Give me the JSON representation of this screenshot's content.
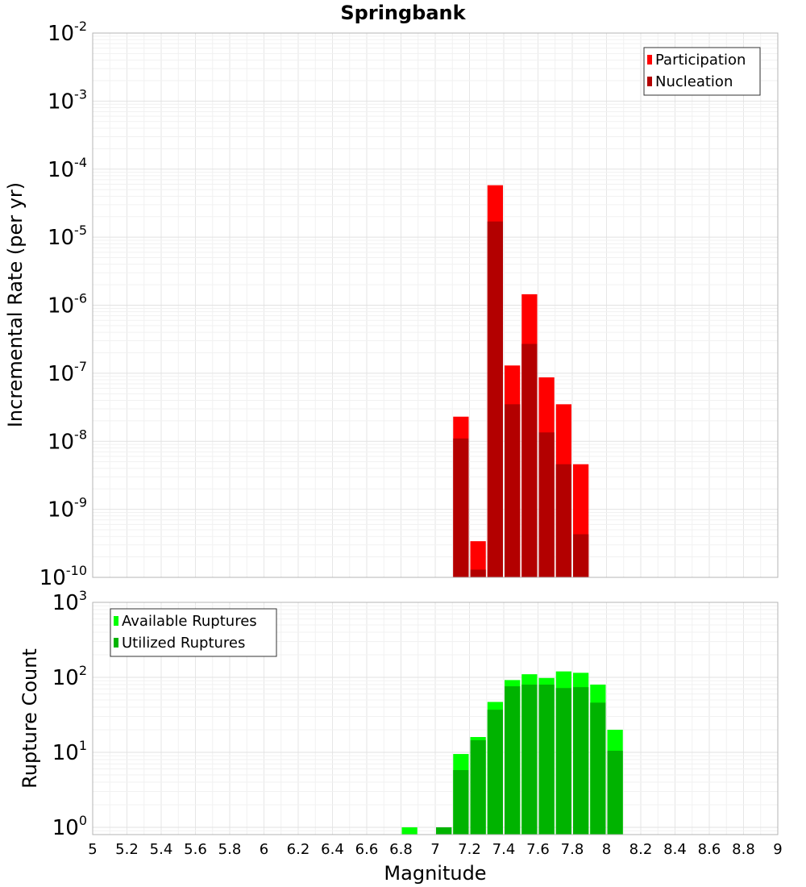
{
  "chart_data": {
    "title": "Springbank",
    "xlabel": "Magnitude",
    "x_ticks": [
      "5",
      "5.2",
      "5.4",
      "5.6",
      "5.8",
      "6",
      "6.2",
      "6.4",
      "6.6",
      "6.8",
      "7",
      "7.2",
      "7.4",
      "7.6",
      "7.8",
      "8",
      "8.2",
      "8.4",
      "8.6",
      "8.8",
      "9"
    ],
    "xlim": [
      5,
      9
    ],
    "bin_width": 0.1,
    "plots": [
      {
        "type": "bar",
        "ylabel": "Incremental Rate (per yr)",
        "yscale": "log",
        "ylim": [
          1e-10,
          0.01
        ],
        "y_ticks": [
          {
            "base": "10",
            "exp": "-10"
          },
          {
            "base": "10",
            "exp": "-9"
          },
          {
            "base": "10",
            "exp": "-8"
          },
          {
            "base": "10",
            "exp": "-7"
          },
          {
            "base": "10",
            "exp": "-6"
          },
          {
            "base": "10",
            "exp": "-5"
          },
          {
            "base": "10",
            "exp": "-4"
          },
          {
            "base": "10",
            "exp": "-3"
          },
          {
            "base": "10",
            "exp": "-2"
          }
        ],
        "legend_position": "top-right",
        "series": [
          {
            "name": "Participation",
            "color": "#ff0000",
            "x": [
              7.15,
              7.25,
              7.35,
              7.45,
              7.55,
              7.65,
              7.75,
              7.85
            ],
            "values": [
              2.3e-08,
              3.4e-10,
              5.8e-05,
              1.3e-07,
              1.45e-06,
              8.7e-08,
              3.5e-08,
              4.6e-09
            ]
          },
          {
            "name": "Nucleation",
            "color": "#b30000",
            "x": [
              7.15,
              7.25,
              7.35,
              7.45,
              7.55,
              7.65,
              7.75,
              7.85
            ],
            "values": [
              1.1e-08,
              1.3e-10,
              1.7e-05,
              3.5e-08,
              2.7e-07,
              1.35e-08,
              4.6e-09,
              4.3e-10
            ]
          }
        ]
      },
      {
        "type": "bar",
        "ylabel": "Rupture Count",
        "yscale": "log",
        "ylim": [
          0.8,
          1000
        ],
        "y_ticks": [
          {
            "base": "10",
            "exp": "0"
          },
          {
            "base": "10",
            "exp": "1"
          },
          {
            "base": "10",
            "exp": "2"
          },
          {
            "base": "10",
            "exp": "3"
          }
        ],
        "legend_position": "top-left",
        "series": [
          {
            "name": "Available Ruptures",
            "color": "#00ff00",
            "x": [
              6.85,
              7.05,
              7.15,
              7.25,
              7.35,
              7.45,
              7.55,
              7.65,
              7.75,
              7.85,
              7.95,
              8.05
            ],
            "values": [
              1,
              1,
              9.5,
              16,
              47,
              92,
              110,
              98,
              120,
              115,
              80,
              20
            ]
          },
          {
            "name": "Utilized Ruptures",
            "color": "#00b300",
            "x": [
              6.85,
              7.05,
              7.15,
              7.25,
              7.35,
              7.45,
              7.55,
              7.65,
              7.75,
              7.85,
              7.95,
              8.05
            ],
            "values": [
              0,
              1,
              5.8,
              14.5,
              37,
              76,
              80,
              80,
              72,
              74,
              46,
              10.5
            ]
          }
        ]
      }
    ]
  }
}
